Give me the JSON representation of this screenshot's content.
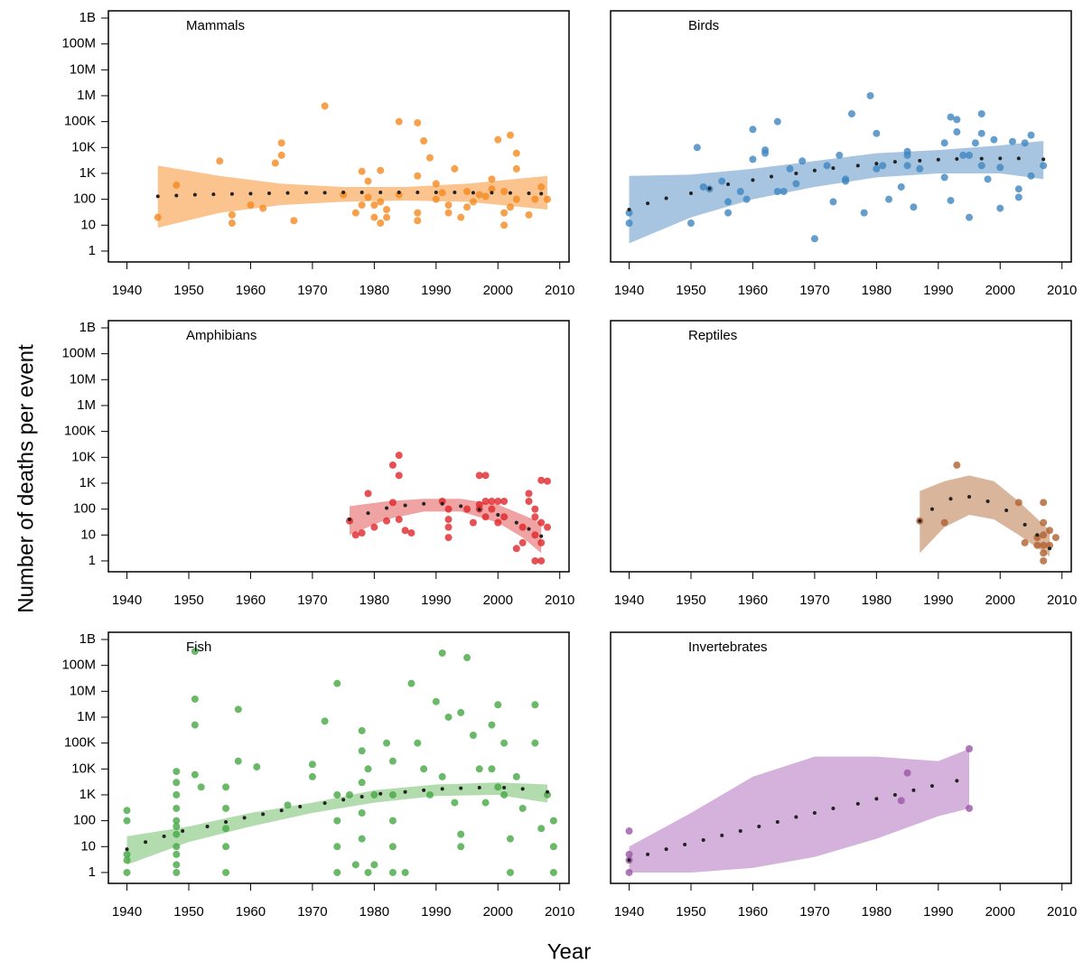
{
  "y_label": "Number of deaths per event",
  "x_label": "Year",
  "chart_data": [
    {
      "type": "scatter",
      "title": "Mammals",
      "color": "#f58a1f",
      "band_color": "#fbc48f",
      "log_y": true,
      "xlim": [
        1937,
        2011.5
      ],
      "ylim": [
        0.38,
        1900000000
      ],
      "xticks": [
        1940,
        1950,
        1960,
        1970,
        1980,
        1990,
        2000,
        2010
      ],
      "yticks": [
        1,
        10,
        100,
        {
          "value": 1000,
          "label": "1K"
        },
        {
          "value": 10000,
          "label": "10K"
        },
        {
          "value": 100000,
          "label": "100K"
        },
        {
          "value": 1000000,
          "label": "1M"
        },
        {
          "value": 10000000,
          "label": "10M"
        },
        {
          "value": 100000000,
          "label": "100M"
        },
        {
          "value": 1000000000,
          "label": "1B"
        }
      ],
      "x": [
        1945,
        1948,
        1955,
        1957,
        1957,
        1960,
        1962,
        1964,
        1965,
        1965,
        1967,
        1972,
        1975,
        1977,
        1978,
        1978,
        1979,
        1979,
        1980,
        1980,
        1981,
        1981,
        1981,
        1982,
        1982,
        1984,
        1984,
        1987,
        1987,
        1987,
        1987,
        1988,
        1989,
        1990,
        1990,
        1991,
        1992,
        1992,
        1993,
        1994,
        1995,
        1995,
        1996,
        1997,
        1998,
        1999,
        1999,
        2000,
        2001,
        2001,
        2001,
        2002,
        2002,
        2003,
        2003,
        2003,
        2005,
        2006,
        2007,
        2008
      ],
      "y": [
        20,
        350,
        3000,
        25,
        12,
        60,
        45,
        2500,
        15000,
        5000,
        15,
        400000,
        150,
        30,
        1200,
        60,
        500,
        120,
        20,
        60,
        12,
        1300,
        80,
        20,
        40,
        100000,
        150,
        90000,
        15,
        30,
        800,
        18000,
        4000,
        400,
        100,
        180,
        60,
        30,
        1500,
        20,
        50,
        200,
        80,
        150,
        130,
        250,
        600,
        20000,
        30,
        10,
        200,
        30000,
        50,
        6000,
        1500,
        100,
        25,
        100,
        300,
        100
      ],
      "trend": {
        "x": [
          1945,
          1948,
          1951,
          1954,
          1957,
          1960,
          1963,
          1966,
          1969,
          1972,
          1975,
          1978,
          1981,
          1984,
          1987,
          1990,
          1993,
          1996,
          1999,
          2002,
          2005,
          2007
        ],
        "y": [
          130,
          140,
          150,
          155,
          160,
          165,
          170,
          175,
          180,
          180,
          185,
          185,
          185,
          185,
          185,
          185,
          185,
          180,
          180,
          175,
          170,
          165
        ]
      },
      "band": {
        "x": [
          1945,
          1955,
          1965,
          1975,
          1985,
          1995,
          2008
        ],
        "lower": [
          8,
          30,
          60,
          80,
          90,
          80,
          40
        ],
        "upper": [
          2000,
          800,
          400,
          300,
          300,
          400,
          800
        ]
      }
    },
    {
      "type": "scatter",
      "title": "Birds",
      "color": "#3f86c0",
      "band_color": "#a7c5e0",
      "log_y": true,
      "xlim": [
        1937,
        2011.5
      ],
      "ylim": [
        0.38,
        1900000000
      ],
      "xticks": [
        1940,
        1950,
        1960,
        1970,
        1980,
        1990,
        2000,
        2010
      ],
      "x": [
        1940,
        1940,
        1950,
        1951,
        1952,
        1953,
        1955,
        1956,
        1956,
        1958,
        1959,
        1960,
        1960,
        1962,
        1962,
        1964,
        1964,
        1965,
        1966,
        1967,
        1968,
        1970,
        1972,
        1973,
        1974,
        1975,
        1975,
        1976,
        1978,
        1979,
        1980,
        1980,
        1981,
        1982,
        1984,
        1985,
        1985,
        1985,
        1986,
        1987,
        1991,
        1991,
        1992,
        1992,
        1993,
        1993,
        1994,
        1995,
        1995,
        1996,
        1997,
        1997,
        1997,
        1998,
        1999,
        2000,
        2000,
        2002,
        2003,
        2003,
        2004,
        2005,
        2005,
        2007
      ],
      "y": [
        12,
        30,
        12,
        10000,
        300,
        250,
        500,
        80,
        30,
        200,
        100,
        3500,
        50000,
        6000,
        8000,
        100000,
        200,
        200,
        1500,
        400,
        3000,
        3,
        2000,
        80,
        5000,
        500,
        600,
        200000,
        30,
        1000000,
        35000,
        1500,
        2000,
        100,
        300,
        7000,
        5000,
        2000,
        50,
        1500,
        15000,
        700,
        150000,
        90,
        120000,
        40000,
        5000,
        20,
        5000,
        15000,
        200000,
        35000,
        2000,
        600,
        20000,
        45,
        1700,
        17000,
        250,
        120,
        15000,
        30000,
        800,
        2000
      ],
      "trend": {
        "x": [
          1940,
          1943,
          1946,
          1950,
          1953,
          1956,
          1960,
          1963,
          1967,
          1970,
          1973,
          1977,
          1980,
          1983,
          1987,
          1990,
          1993,
          1997,
          2000,
          2003,
          2007
        ],
        "y": [
          40,
          70,
          110,
          170,
          260,
          380,
          550,
          750,
          1000,
          1300,
          1600,
          2000,
          2400,
          2800,
          3100,
          3400,
          3600,
          3700,
          3800,
          3800,
          3500
        ]
      },
      "band": {
        "x": [
          1940,
          1950,
          1960,
          1970,
          1980,
          1990,
          2000,
          2007
        ],
        "lower": [
          2,
          20,
          100,
          300,
          700,
          1000,
          1000,
          600
        ],
        "upper": [
          800,
          900,
          1500,
          3000,
          6000,
          8000,
          12000,
          18000
        ]
      }
    },
    {
      "type": "scatter",
      "title": "Amphibians",
      "color": "#e0262b",
      "band_color": "#f0a3a3",
      "log_y": true,
      "xlim": [
        1937,
        2011.5
      ],
      "ylim": [
        0.38,
        1900000000
      ],
      "xticks": [
        1940,
        1950,
        1960,
        1970,
        1980,
        1990,
        2000,
        2010
      ],
      "yticks": [
        1,
        10,
        100,
        {
          "value": 1000,
          "label": "1K"
        },
        {
          "value": 10000,
          "label": "10K"
        },
        {
          "value": 100000,
          "label": "100K"
        },
        {
          "value": 1000000,
          "label": "1M"
        },
        {
          "value": 10000000,
          "label": "10M"
        },
        {
          "value": 100000000,
          "label": "100M"
        },
        {
          "value": 1000000000,
          "label": "1B"
        }
      ],
      "x": [
        1976,
        1977,
        1978,
        1979,
        1980,
        1982,
        1983,
        1983,
        1984,
        1984,
        1984,
        1985,
        1986,
        1991,
        1992,
        1992,
        1992,
        1992,
        1995,
        1996,
        1997,
        1997,
        1997,
        1998,
        1998,
        1998,
        1999,
        1999,
        2000,
        2000,
        2001,
        2001,
        2003,
        2004,
        2004,
        2005,
        2005,
        2006,
        2006,
        2006,
        2006,
        2007,
        2007,
        2007,
        2007,
        2008,
        2008
      ],
      "y": [
        35,
        10,
        12,
        400,
        20,
        35,
        5000,
        180,
        12000,
        40,
        2000,
        15,
        12,
        200,
        100,
        40,
        20,
        8,
        100,
        30,
        2000,
        150,
        100,
        2000,
        200,
        50,
        200,
        100,
        200,
        30,
        200,
        50,
        3,
        5,
        20,
        400,
        200,
        1,
        10,
        50,
        100,
        1,
        5,
        30,
        1300,
        1200,
        20
      ],
      "trend": {
        "x": [
          1976,
          1979,
          1982,
          1985,
          1988,
          1991,
          1994,
          1997,
          2000,
          2003,
          2005,
          2007
        ],
        "y": [
          40,
          70,
          110,
          140,
          160,
          160,
          130,
          95,
          60,
          30,
          17,
          9
        ]
      },
      "band": {
        "x": [
          1976,
          1982,
          1988,
          1994,
          2000,
          2004,
          2007
        ],
        "lower": [
          10,
          40,
          80,
          80,
          30,
          8,
          2
        ],
        "upper": [
          130,
          200,
          250,
          250,
          150,
          60,
          30
        ]
      }
    },
    {
      "type": "scatter",
      "title": "Reptiles",
      "color": "#b0622f",
      "band_color": "#d9b59c",
      "log_y": true,
      "xlim": [
        1937,
        2011.5
      ],
      "ylim": [
        0.38,
        1900000000
      ],
      "xticks": [
        1940,
        1950,
        1960,
        1970,
        1980,
        1990,
        2000,
        2010
      ],
      "x": [
        1987,
        1991,
        1993,
        2003,
        2004,
        2006,
        2006,
        2007,
        2007,
        2007,
        2007,
        2007,
        2007,
        2008,
        2008,
        2009
      ],
      "y": [
        35,
        30,
        5000,
        180,
        5,
        8,
        4,
        180,
        30,
        10,
        4,
        2,
        1,
        15,
        4,
        8
      ],
      "trend": {
        "x": [
          1987,
          1989,
          1992,
          1995,
          1998,
          2001,
          2004,
          2006,
          2008
        ],
        "y": [
          35,
          100,
          250,
          300,
          200,
          90,
          25,
          10,
          3
        ]
      },
      "band": {
        "x": [
          1987,
          1991,
          1995,
          1999,
          2003,
          2008
        ],
        "lower": [
          2,
          20,
          60,
          40,
          10,
          1.5
        ],
        "upper": [
          500,
          1200,
          2000,
          1200,
          200,
          15
        ]
      }
    },
    {
      "type": "scatter",
      "title": "Fish",
      "color": "#43a843",
      "band_color": "#b3dcae",
      "log_y": true,
      "xlim": [
        1937,
        2011.5
      ],
      "ylim": [
        0.38,
        1900000000
      ],
      "xticks": [
        1940,
        1950,
        1960,
        1970,
        1980,
        1990,
        2000,
        2010
      ],
      "yticks": [
        1,
        10,
        100,
        {
          "value": 1000,
          "label": "1K"
        },
        {
          "value": 10000,
          "label": "10K"
        },
        {
          "value": 100000,
          "label": "100K"
        },
        {
          "value": 1000000,
          "label": "1M"
        },
        {
          "value": 10000000,
          "label": "10M"
        },
        {
          "value": 100000000,
          "label": "100M"
        },
        {
          "value": 1000000000,
          "label": "1B"
        }
      ],
      "x": [
        1940,
        1940,
        1940,
        1940,
        1940,
        1948,
        1948,
        1948,
        1948,
        1948,
        1948,
        1948,
        1948,
        1948,
        1948,
        1948,
        1951,
        1951,
        1951,
        1951,
        1952,
        1956,
        1956,
        1956,
        1956,
        1956,
        1958,
        1958,
        1961,
        1966,
        1972,
        1970,
        1970,
        1974,
        1974,
        1974,
        1974,
        1974,
        1976,
        1977,
        1978,
        1978,
        1978,
        1978,
        1978,
        1979,
        1979,
        1980,
        1980,
        1982,
        1983,
        1983,
        1983,
        1983,
        1983,
        1985,
        1986,
        1987,
        1988,
        1989,
        1990,
        1991,
        1991,
        1992,
        1993,
        1994,
        1994,
        1994,
        1995,
        1996,
        1997,
        1998,
        1999,
        1999,
        2000,
        2000,
        2001,
        2001,
        2002,
        2002,
        2003,
        2004,
        2006,
        2006,
        2007,
        2008,
        2009,
        2009,
        2009
      ],
      "y": [
        1,
        3,
        5,
        100,
        250,
        1,
        2,
        5,
        10,
        30,
        60,
        100,
        300,
        1000,
        3000,
        8000,
        350000000,
        5000000,
        500000,
        6000,
        2000,
        1,
        10,
        50,
        2000,
        300,
        2000000,
        20000,
        12000,
        400,
        700000,
        5000,
        15000,
        20000000,
        1000,
        100,
        10,
        1,
        1000,
        2,
        300000,
        50000,
        3000,
        200,
        20,
        1,
        10000,
        1000,
        2,
        100000,
        20000,
        1000,
        100,
        10,
        1,
        1,
        20000000,
        100000,
        10000,
        1000,
        4000000,
        300000000,
        5000,
        1000000,
        500,
        1500000,
        30,
        10,
        200000000,
        200000,
        10000,
        500,
        500000,
        10000,
        3000000,
        2000,
        100000,
        1000,
        20,
        1,
        5000,
        300,
        3000000,
        100000,
        50,
        1000,
        10,
        1,
        100
      ],
      "trend": {
        "x": [
          1940,
          1943,
          1946,
          1949,
          1953,
          1956,
          1959,
          1962,
          1965,
          1968,
          1972,
          1975,
          1978,
          1981,
          1985,
          1988,
          1991,
          1994,
          1997,
          2001,
          2004,
          2008
        ],
        "y": [
          8,
          15,
          25,
          40,
          60,
          90,
          130,
          180,
          250,
          350,
          480,
          650,
          850,
          1100,
          1300,
          1500,
          1700,
          1800,
          1900,
          1900,
          1700,
          1300
        ]
      },
      "band": {
        "x": [
          1940,
          1950,
          1960,
          1970,
          1980,
          1990,
          2000,
          2008
        ],
        "lower": [
          2,
          15,
          60,
          200,
          500,
          900,
          1000,
          500
        ],
        "upper": [
          25,
          60,
          200,
          500,
          1500,
          2500,
          3000,
          2500
        ]
      }
    },
    {
      "type": "scatter",
      "title": "Invertebrates",
      "color": "#9a56a8",
      "band_color": "#d5b2dc",
      "log_y": true,
      "xlim": [
        1937,
        2011.5
      ],
      "ylim": [
        0.38,
        1900000000
      ],
      "xticks": [
        1940,
        1950,
        1960,
        1970,
        1980,
        1990,
        2000,
        2010
      ],
      "x": [
        1940,
        1940,
        1940,
        1940,
        1984,
        1985,
        1995,
        1995
      ],
      "y": [
        1,
        3,
        5,
        40,
        600,
        7000,
        60000,
        300
      ],
      "trend": {
        "x": [
          1940,
          1943,
          1946,
          1949,
          1952,
          1955,
          1958,
          1961,
          1964,
          1967,
          1970,
          1973,
          1977,
          1980,
          1983,
          1986,
          1989,
          1993
        ],
        "y": [
          3,
          5,
          8,
          12,
          18,
          27,
          40,
          60,
          90,
          140,
          200,
          300,
          450,
          700,
          1000,
          1500,
          2200,
          3500
        ]
      },
      "band": {
        "x": [
          1940,
          1950,
          1960,
          1970,
          1980,
          1990,
          1995
        ],
        "lower": [
          1,
          1,
          1.5,
          4,
          20,
          150,
          300
        ],
        "upper": [
          10,
          200,
          5000,
          30000,
          30000,
          20000,
          60000
        ]
      }
    }
  ]
}
